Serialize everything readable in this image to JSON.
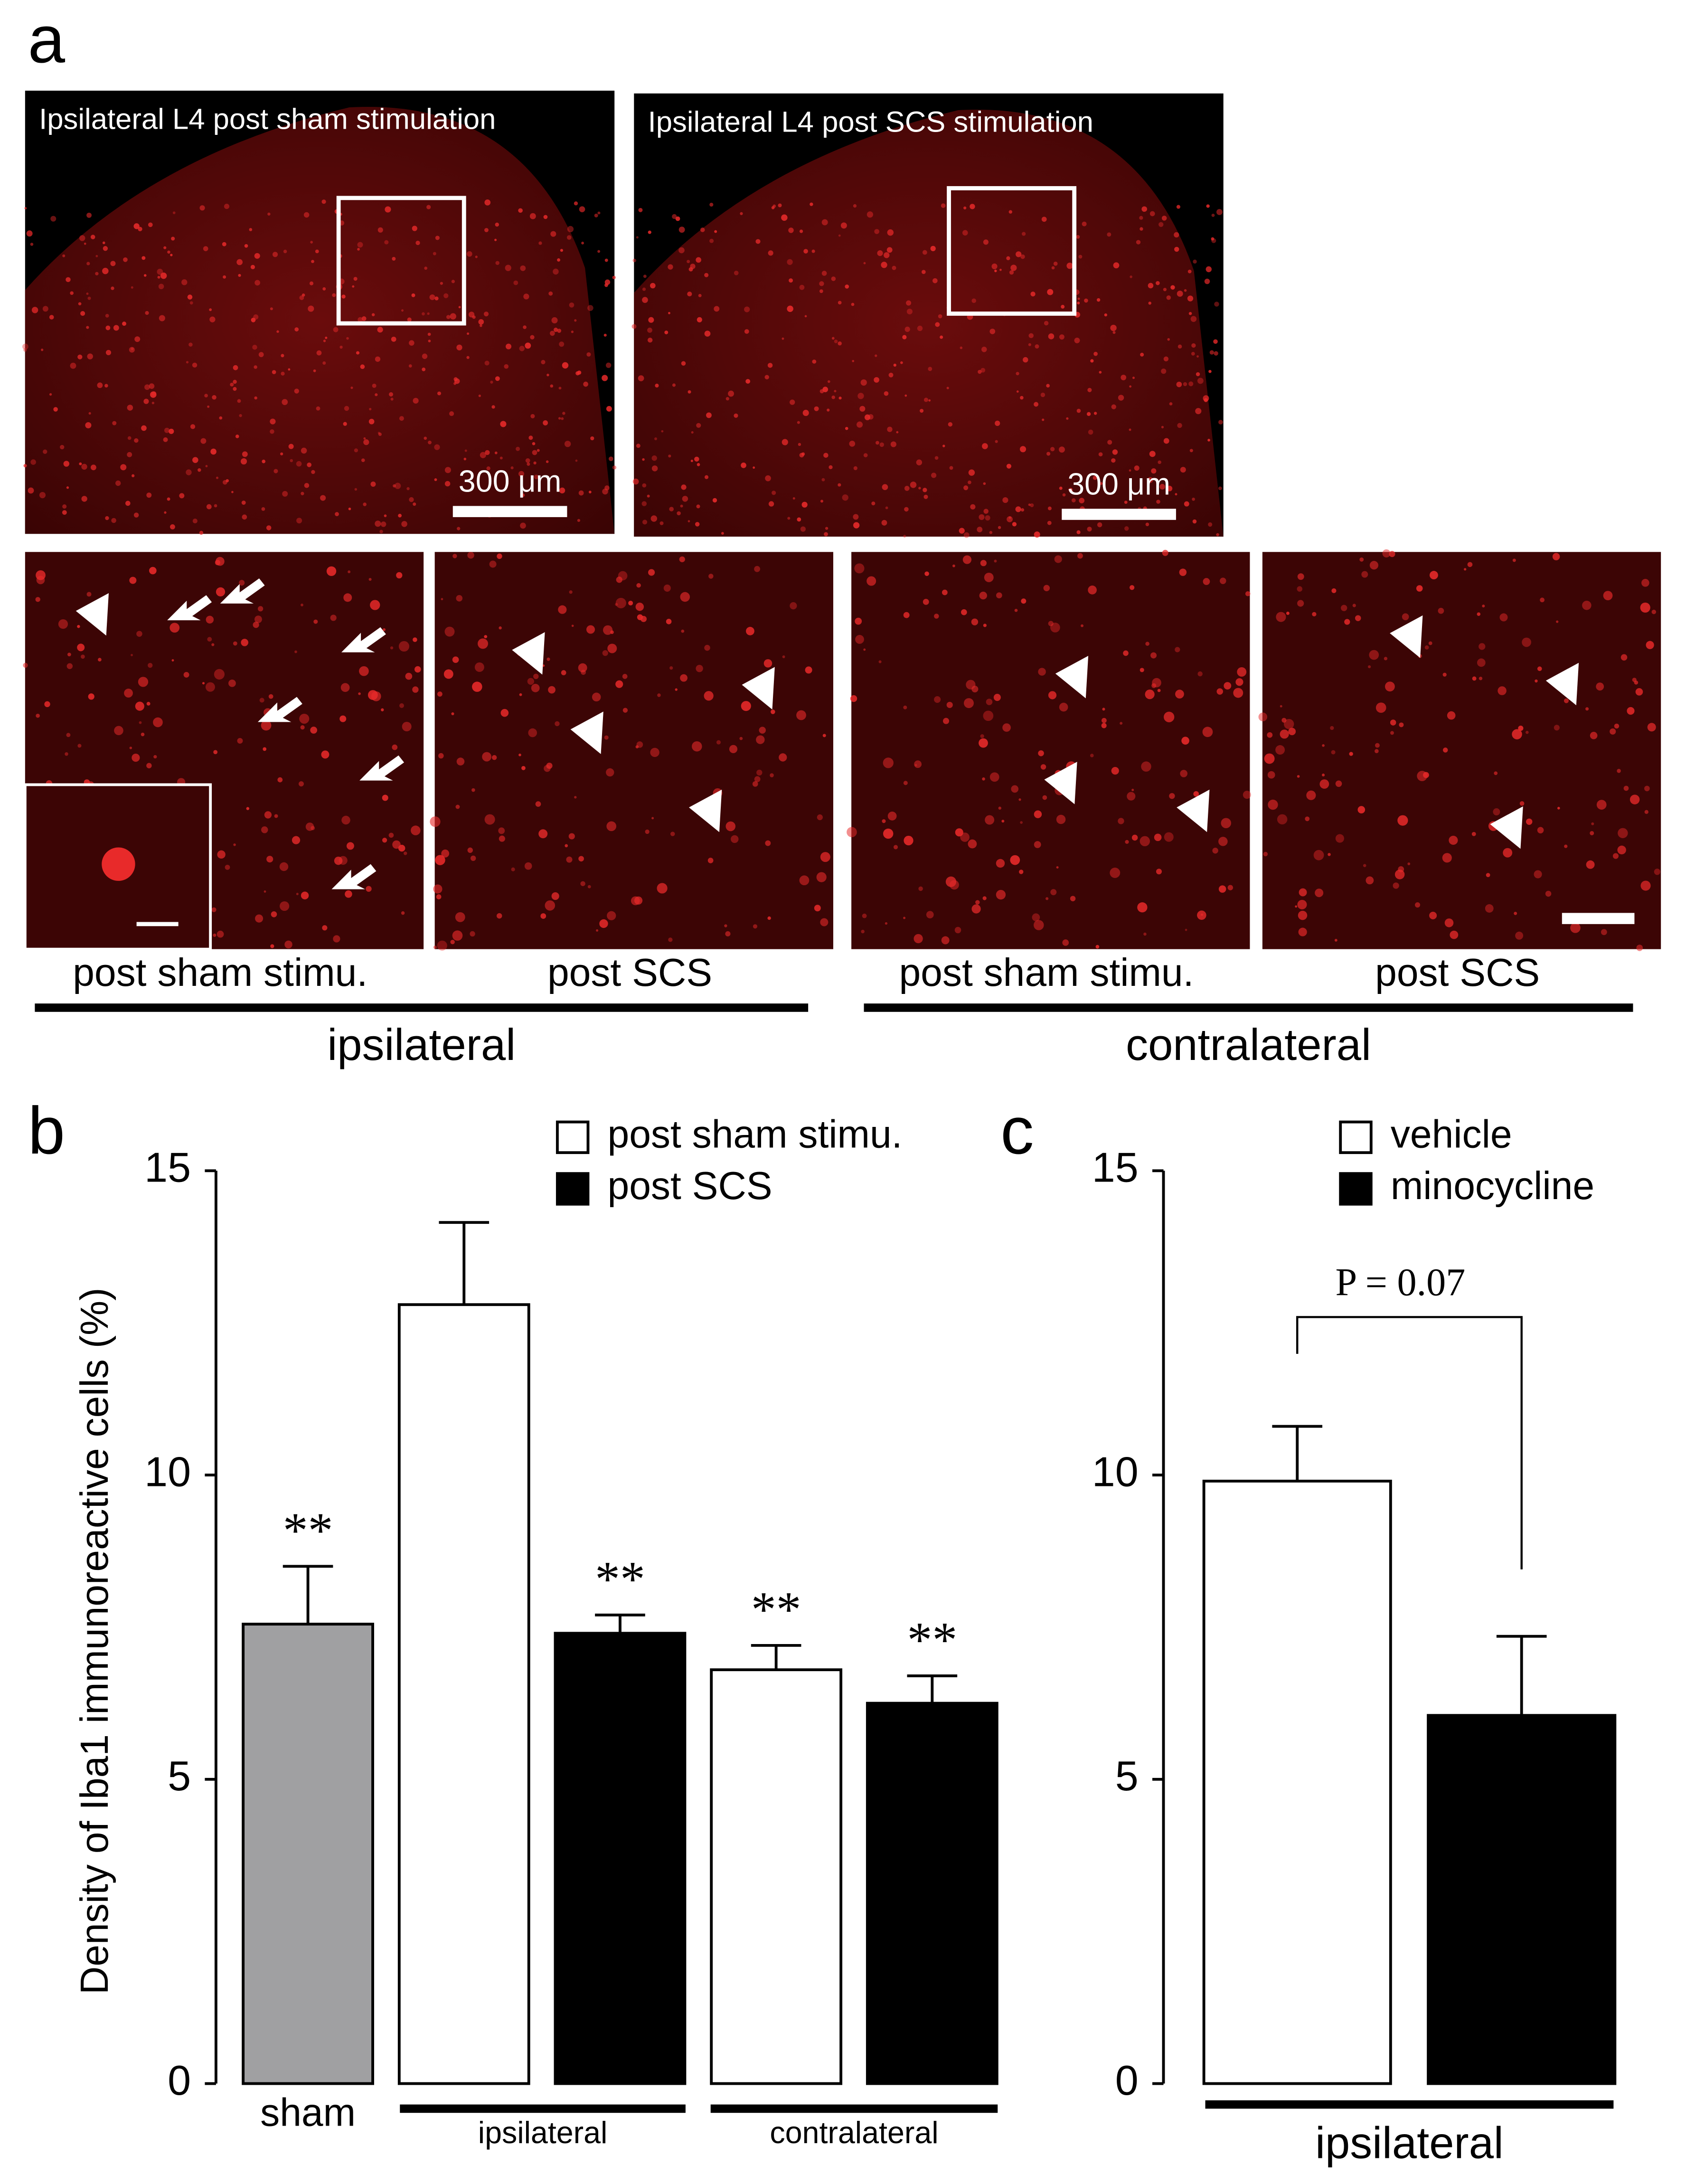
{
  "panel_labels": [
    "a",
    "b",
    "c"
  ],
  "panel_a": {
    "images": [
      {
        "title": "Ipsilateral L4 post sham stimulation",
        "scale_label": "300 μm"
      },
      {
        "title": "Ipsilateral L4 post SCS stimulation",
        "scale_label": "300 μm"
      }
    ],
    "subpanels": [
      "post sham stimu.",
      "post SCS",
      "post sham stimu.",
      "post SCS"
    ],
    "groups": [
      "ipsilateral",
      "contralateral"
    ]
  },
  "chart_data": [
    {
      "type": "bar",
      "ylabel": "Density of Iba1 immunoreactive cells (%)",
      "categories": [
        "sham",
        null,
        null,
        null,
        null
      ],
      "groups": [
        "ipsilateral",
        "contralateral"
      ],
      "values": [
        7.55,
        12.8,
        7.4,
        6.8,
        6.25
      ],
      "errors": [
        0.95,
        1.35,
        0.3,
        0.4,
        0.45
      ],
      "colors": [
        "#a0a0a2",
        "#ffffff",
        "#000000",
        "#ffffff",
        "#000000"
      ],
      "annotations": [
        "**",
        null,
        "**",
        "**",
        "**"
      ],
      "legend": [
        {
          "name": "post sham stimu.",
          "color": "#ffffff"
        },
        {
          "name": "post SCS",
          "color": "#000000"
        }
      ],
      "ylim": [
        0,
        15
      ],
      "yticks": [
        0,
        5,
        10,
        15
      ]
    },
    {
      "type": "bar",
      "categories": [
        null,
        null
      ],
      "groups": [
        "ipsilateral"
      ],
      "values": [
        9.9,
        6.05
      ],
      "errors": [
        0.9,
        1.3
      ],
      "colors": [
        "#ffffff",
        "#000000"
      ],
      "legend": [
        {
          "name": "vehicle",
          "color": "#ffffff"
        },
        {
          "name": "minocycline",
          "color": "#000000"
        }
      ],
      "comparison": "P = 0.07",
      "ylim": [
        0,
        15
      ],
      "yticks": [
        0,
        5,
        10,
        15
      ]
    }
  ]
}
